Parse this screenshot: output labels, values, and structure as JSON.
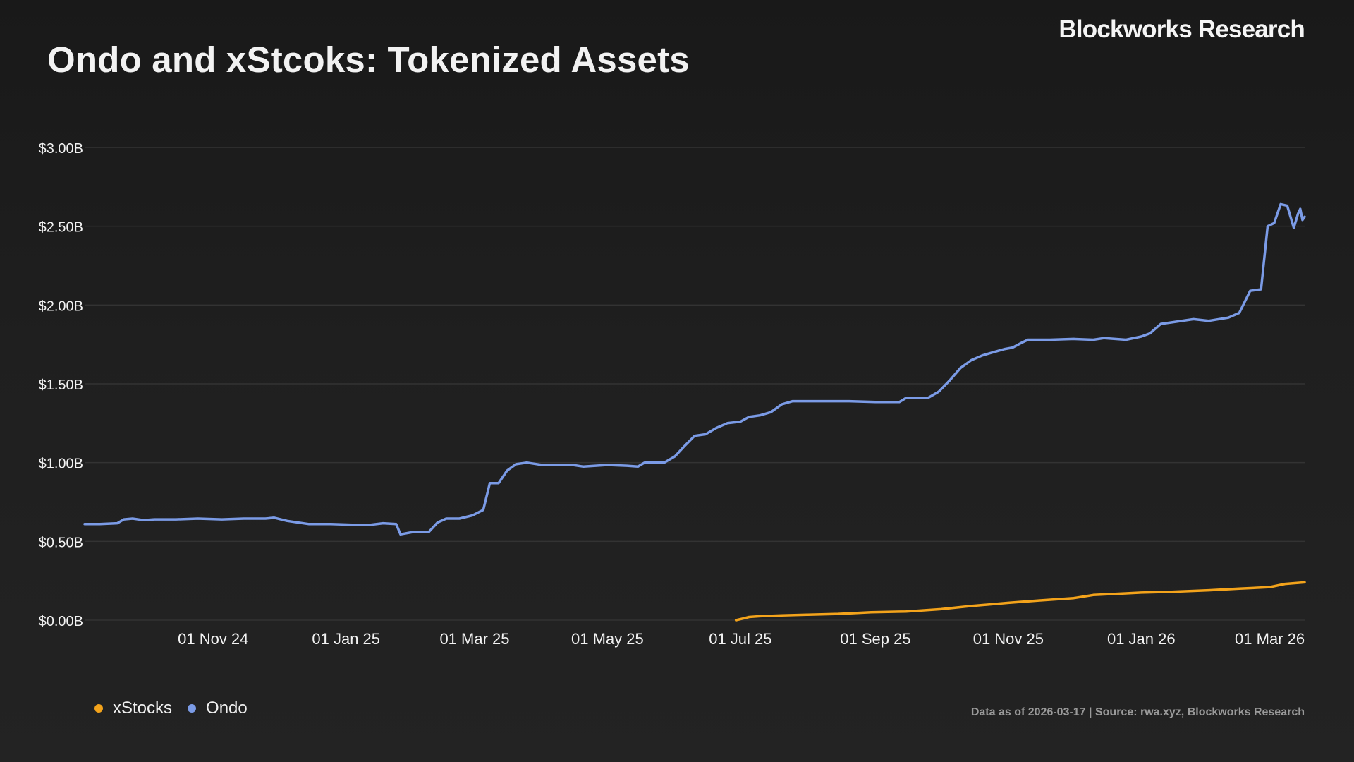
{
  "header": {
    "title": "Ondo and xStcoks: Tokenized Assets",
    "brand": "Blockworks Research"
  },
  "footer": {
    "source": "Data as of 2026-03-17 | Source: rwa.xyz, Blockworks Research"
  },
  "colors": {
    "background": "#1f1f1f",
    "ondo": "#7b9be6",
    "xstocks": "#f3a31b",
    "grid": "#333333",
    "text": "#ffffff"
  },
  "chart_data": {
    "type": "line",
    "title": "Ondo and xStcoks: Tokenized Assets",
    "xlabel": "",
    "ylabel": "",
    "x_range": [
      "2024-09-03",
      "2026-03-17"
    ],
    "ylim": [
      0,
      3.0
    ],
    "y_unit": "USD billions",
    "y_ticks": [
      0,
      0.5,
      1.0,
      1.5,
      2.0,
      2.5,
      3.0
    ],
    "y_tick_labels": [
      "$0.00B",
      "$0.50B",
      "$1.00B",
      "$1.50B",
      "$2.00B",
      "$2.50B",
      "$3.00B"
    ],
    "x_ticks": [
      "2024-11-01",
      "2025-01-01",
      "2025-03-01",
      "2025-05-01",
      "2025-07-01",
      "2025-09-01",
      "2025-11-01",
      "2026-01-01",
      "2026-03-01"
    ],
    "x_tick_labels": [
      "01 Nov 24",
      "01 Jan 25",
      "01 Mar 25",
      "01 May 25",
      "01 Jul 25",
      "01 Sep 25",
      "01 Nov 25",
      "01 Jan 26",
      "01 Mar 26"
    ],
    "grid": true,
    "legend_position": "bottom-left",
    "series": [
      {
        "name": "xStocks",
        "color": "#f3a31b",
        "points": [
          [
            "2025-06-29",
            0.0
          ],
          [
            "2025-07-02",
            0.01
          ],
          [
            "2025-07-05",
            0.02
          ],
          [
            "2025-07-10",
            0.025
          ],
          [
            "2025-07-20",
            0.03
          ],
          [
            "2025-08-01",
            0.035
          ],
          [
            "2025-08-15",
            0.04
          ],
          [
            "2025-08-30",
            0.05
          ],
          [
            "2025-09-15",
            0.055
          ],
          [
            "2025-10-01",
            0.07
          ],
          [
            "2025-10-15",
            0.09
          ],
          [
            "2025-11-01",
            0.11
          ],
          [
            "2025-11-15",
            0.125
          ],
          [
            "2025-12-01",
            0.14
          ],
          [
            "2025-12-10",
            0.16
          ],
          [
            "2025-12-25",
            0.17
          ],
          [
            "2026-01-01",
            0.175
          ],
          [
            "2026-01-15",
            0.18
          ],
          [
            "2026-02-01",
            0.19
          ],
          [
            "2026-02-15",
            0.2
          ],
          [
            "2026-03-01",
            0.21
          ],
          [
            "2026-03-08",
            0.23
          ],
          [
            "2026-03-17",
            0.24
          ]
        ]
      },
      {
        "name": "Ondo",
        "color": "#7b9be6",
        "points": [
          [
            "2024-09-03",
            0.61
          ],
          [
            "2024-09-10",
            0.61
          ],
          [
            "2024-09-18",
            0.615
          ],
          [
            "2024-09-21",
            0.64
          ],
          [
            "2024-09-25",
            0.645
          ],
          [
            "2024-09-30",
            0.635
          ],
          [
            "2024-10-05",
            0.64
          ],
          [
            "2024-10-10",
            0.64
          ],
          [
            "2024-10-15",
            0.64
          ],
          [
            "2024-10-25",
            0.645
          ],
          [
            "2024-11-05",
            0.64
          ],
          [
            "2024-11-15",
            0.645
          ],
          [
            "2024-11-25",
            0.645
          ],
          [
            "2024-11-29",
            0.65
          ],
          [
            "2024-12-05",
            0.63
          ],
          [
            "2024-12-15",
            0.61
          ],
          [
            "2024-12-25",
            0.61
          ],
          [
            "2025-01-05",
            0.605
          ],
          [
            "2025-01-12",
            0.605
          ],
          [
            "2025-01-18",
            0.615
          ],
          [
            "2025-01-24",
            0.61
          ],
          [
            "2025-01-26",
            0.545
          ],
          [
            "2025-02-01",
            0.56
          ],
          [
            "2025-02-08",
            0.56
          ],
          [
            "2025-02-12",
            0.62
          ],
          [
            "2025-02-16",
            0.645
          ],
          [
            "2025-02-22",
            0.645
          ],
          [
            "2025-02-28",
            0.665
          ],
          [
            "2025-03-05",
            0.7
          ],
          [
            "2025-03-08",
            0.87
          ],
          [
            "2025-03-12",
            0.87
          ],
          [
            "2025-03-16",
            0.95
          ],
          [
            "2025-03-20",
            0.99
          ],
          [
            "2025-03-25",
            1.0
          ],
          [
            "2025-04-01",
            0.985
          ],
          [
            "2025-04-15",
            0.985
          ],
          [
            "2025-04-20",
            0.975
          ],
          [
            "2025-05-01",
            0.985
          ],
          [
            "2025-05-10",
            0.98
          ],
          [
            "2025-05-15",
            0.975
          ],
          [
            "2025-05-18",
            1.0
          ],
          [
            "2025-05-27",
            1.0
          ],
          [
            "2025-06-01",
            1.04
          ],
          [
            "2025-06-05",
            1.1
          ],
          [
            "2025-06-10",
            1.17
          ],
          [
            "2025-06-15",
            1.18
          ],
          [
            "2025-06-20",
            1.22
          ],
          [
            "2025-06-25",
            1.25
          ],
          [
            "2025-07-01",
            1.26
          ],
          [
            "2025-07-05",
            1.29
          ],
          [
            "2025-07-10",
            1.3
          ],
          [
            "2025-07-15",
            1.32
          ],
          [
            "2025-07-20",
            1.37
          ],
          [
            "2025-07-25",
            1.39
          ],
          [
            "2025-08-15",
            1.39
          ],
          [
            "2025-08-20",
            1.39
          ],
          [
            "2025-09-01",
            1.385
          ],
          [
            "2025-09-12",
            1.385
          ],
          [
            "2025-09-15",
            1.41
          ],
          [
            "2025-09-25",
            1.41
          ],
          [
            "2025-09-30",
            1.45
          ],
          [
            "2025-10-05",
            1.52
          ],
          [
            "2025-10-10",
            1.6
          ],
          [
            "2025-10-15",
            1.65
          ],
          [
            "2025-10-20",
            1.68
          ],
          [
            "2025-10-25",
            1.7
          ],
          [
            "2025-10-30",
            1.72
          ],
          [
            "2025-11-03",
            1.73
          ],
          [
            "2025-11-07",
            1.76
          ],
          [
            "2025-11-10",
            1.78
          ],
          [
            "2025-11-20",
            1.78
          ],
          [
            "2025-12-01",
            1.785
          ],
          [
            "2025-12-10",
            1.78
          ],
          [
            "2025-12-15",
            1.79
          ],
          [
            "2025-12-25",
            1.78
          ],
          [
            "2026-01-01",
            1.8
          ],
          [
            "2026-01-05",
            1.82
          ],
          [
            "2026-01-10",
            1.88
          ],
          [
            "2026-01-15",
            1.89
          ],
          [
            "2026-01-25",
            1.91
          ],
          [
            "2026-02-01",
            1.9
          ],
          [
            "2026-02-10",
            1.92
          ],
          [
            "2026-02-15",
            1.95
          ],
          [
            "2026-02-20",
            2.09
          ],
          [
            "2026-02-25",
            2.1
          ],
          [
            "2026-02-28",
            2.5
          ],
          [
            "2026-03-03",
            2.52
          ],
          [
            "2026-03-06",
            2.64
          ],
          [
            "2026-03-09",
            2.63
          ],
          [
            "2026-03-12",
            2.49
          ],
          [
            "2026-03-14",
            2.58
          ],
          [
            "2026-03-15",
            2.61
          ],
          [
            "2026-03-16",
            2.54
          ],
          [
            "2026-03-17",
            2.56
          ]
        ]
      }
    ]
  }
}
